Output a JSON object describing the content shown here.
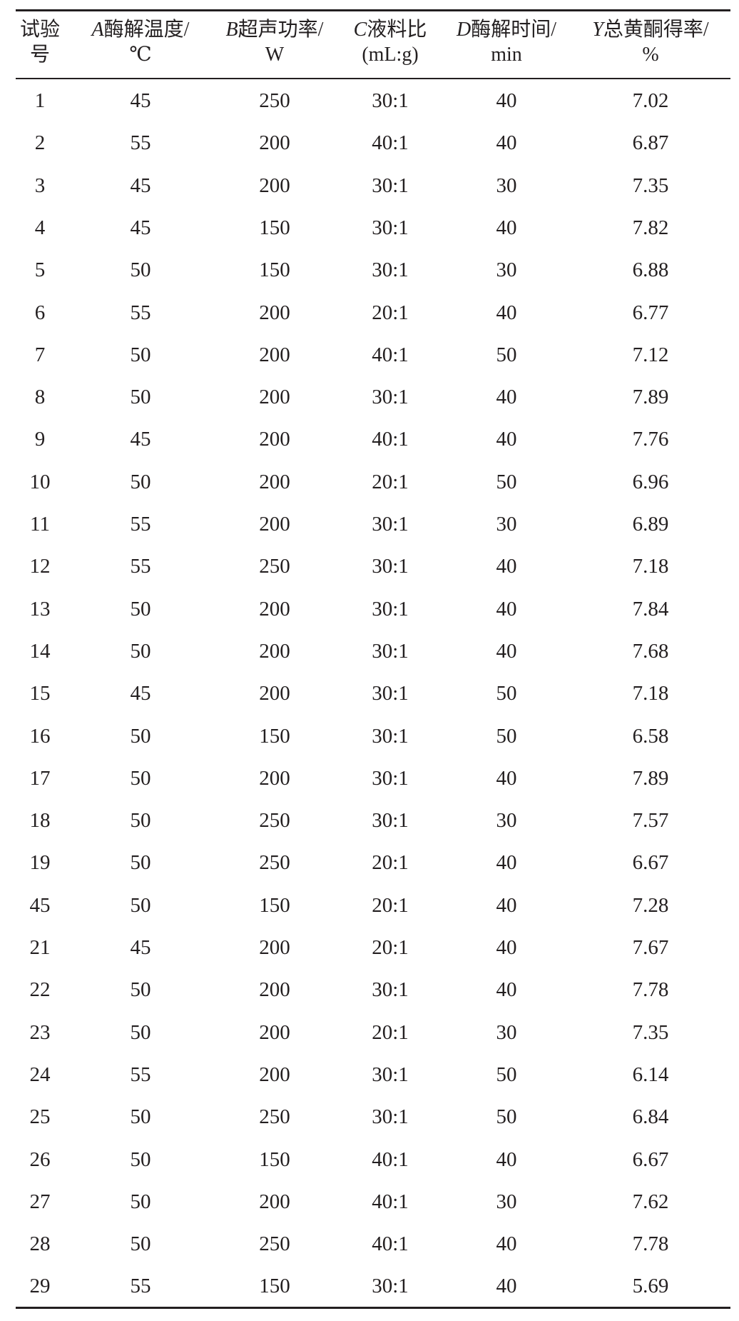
{
  "table": {
    "headers": [
      {
        "var": "",
        "line1": "试验",
        "line2": "号"
      },
      {
        "var": "A",
        "line1": "酶解温度/",
        "line2": "℃"
      },
      {
        "var": "B",
        "line1": "超声功率/",
        "line2": "W"
      },
      {
        "var": "C",
        "line1": "液料比",
        "line2": "(mL:g)"
      },
      {
        "var": "D",
        "line1": "酶解时间/",
        "line2": "min"
      },
      {
        "var": "Y",
        "line1": "总黄酮得率/",
        "line2": "%"
      }
    ],
    "rows": [
      [
        "1",
        "45",
        "250",
        "30:1",
        "40",
        "7.02"
      ],
      [
        "2",
        "55",
        "200",
        "40:1",
        "40",
        "6.87"
      ],
      [
        "3",
        "45",
        "200",
        "30:1",
        "30",
        "7.35"
      ],
      [
        "4",
        "45",
        "150",
        "30:1",
        "40",
        "7.82"
      ],
      [
        "5",
        "50",
        "150",
        "30:1",
        "30",
        "6.88"
      ],
      [
        "6",
        "55",
        "200",
        "20:1",
        "40",
        "6.77"
      ],
      [
        "7",
        "50",
        "200",
        "40:1",
        "50",
        "7.12"
      ],
      [
        "8",
        "50",
        "200",
        "30:1",
        "40",
        "7.89"
      ],
      [
        "9",
        "45",
        "200",
        "40:1",
        "40",
        "7.76"
      ],
      [
        "10",
        "50",
        "200",
        "20:1",
        "50",
        "6.96"
      ],
      [
        "11",
        "55",
        "200",
        "30:1",
        "30",
        "6.89"
      ],
      [
        "12",
        "55",
        "250",
        "30:1",
        "40",
        "7.18"
      ],
      [
        "13",
        "50",
        "200",
        "30:1",
        "40",
        "7.84"
      ],
      [
        "14",
        "50",
        "200",
        "30:1",
        "40",
        "7.68"
      ],
      [
        "15",
        "45",
        "200",
        "30:1",
        "50",
        "7.18"
      ],
      [
        "16",
        "50",
        "150",
        "30:1",
        "50",
        "6.58"
      ],
      [
        "17",
        "50",
        "200",
        "30:1",
        "40",
        "7.89"
      ],
      [
        "18",
        "50",
        "250",
        "30:1",
        "30",
        "7.57"
      ],
      [
        "19",
        "50",
        "250",
        "20:1",
        "40",
        "6.67"
      ],
      [
        "45",
        "50",
        "150",
        "20:1",
        "40",
        "7.28"
      ],
      [
        "21",
        "45",
        "200",
        "20:1",
        "40",
        "7.67"
      ],
      [
        "22",
        "50",
        "200",
        "30:1",
        "40",
        "7.78"
      ],
      [
        "23",
        "50",
        "200",
        "20:1",
        "30",
        "7.35"
      ],
      [
        "24",
        "55",
        "200",
        "30:1",
        "50",
        "6.14"
      ],
      [
        "25",
        "50",
        "250",
        "30:1",
        "50",
        "6.84"
      ],
      [
        "26",
        "50",
        "150",
        "40:1",
        "40",
        "6.67"
      ],
      [
        "27",
        "50",
        "200",
        "40:1",
        "30",
        "7.62"
      ],
      [
        "28",
        "50",
        "250",
        "40:1",
        "40",
        "7.78"
      ],
      [
        "29",
        "55",
        "150",
        "30:1",
        "40",
        "5.69"
      ]
    ]
  }
}
